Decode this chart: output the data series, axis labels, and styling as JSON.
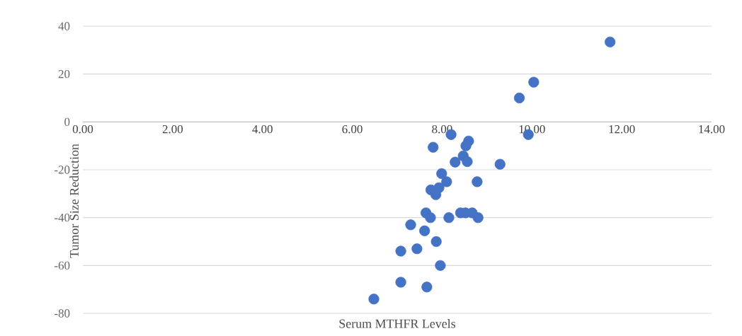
{
  "chart_data": {
    "type": "scatter",
    "xlabel": "Serum MTHFR Levels",
    "ylabel": "Tumor Size Reduction",
    "xlim": [
      0,
      14
    ],
    "ylim": [
      -80,
      40
    ],
    "xticks": [
      {
        "value": 0,
        "label": "0.00"
      },
      {
        "value": 2,
        "label": "2.00"
      },
      {
        "value": 4,
        "label": "4.00"
      },
      {
        "value": 6,
        "label": "6.00"
      },
      {
        "value": 8,
        "label": "8.00"
      },
      {
        "value": 10,
        "label": "10.00"
      },
      {
        "value": 12,
        "label": "12.00"
      },
      {
        "value": 14,
        "label": "14.00"
      }
    ],
    "yticks": [
      -80,
      -60,
      -40,
      -20,
      0,
      20,
      40
    ],
    "grid": "y",
    "marker": "circle",
    "color": "#4472c4",
    "x": [
      6.48,
      7.08,
      7.66,
      7.08,
      7.44,
      7.87,
      7.96,
      7.3,
      7.61,
      7.64,
      7.74,
      8.15,
      8.41,
      8.52,
      8.67,
      8.8,
      7.75,
      7.86,
      7.93,
      8.1,
      7.99,
      8.78,
      9.29,
      7.8,
      8.2,
      8.29,
      8.47,
      8.56,
      8.53,
      8.59,
      9.92,
      9.72,
      10.04,
      11.74
    ],
    "values": [
      -74,
      -67,
      -69,
      -54,
      -53,
      -50,
      -60,
      -43,
      -45.5,
      -38,
      -40,
      -40,
      -38,
      -38,
      -38,
      -40,
      -28.4,
      -30.4,
      -27.5,
      -25,
      -21.6,
      -25,
      -17.7,
      -10.6,
      -5.3,
      -16.8,
      -14.2,
      -16.6,
      -10,
      -8,
      -5.3,
      10,
      16.6,
      33.4
    ]
  }
}
